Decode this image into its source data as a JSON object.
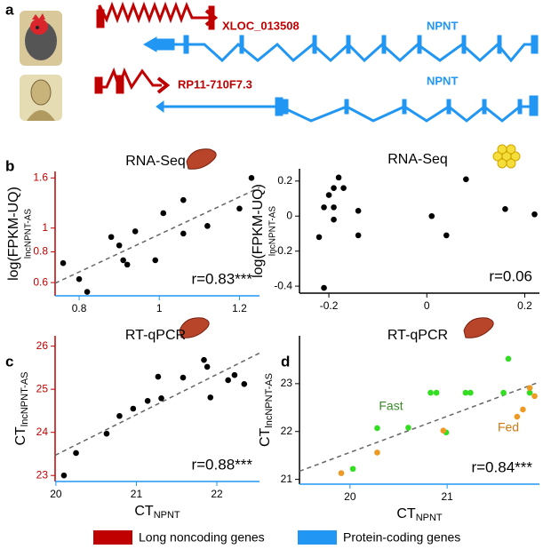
{
  "panel_a": {
    "label": "a",
    "genes": [
      {
        "name": "XLOC_013508",
        "color": "#c00000"
      },
      {
        "name": "NPNT",
        "color": "#2196f3"
      },
      {
        "name": "RP11-710F7.3",
        "color": "#c00000"
      },
      {
        "name": "NPNT",
        "color": "#2196f3"
      }
    ]
  },
  "chart_data": [
    {
      "type": "scatter",
      "label": "b",
      "title": "RNA-Seq",
      "ylabel": "log(FPKM-UQ)",
      "ylabel_sub": "lncNPNT-AS",
      "annotation": "r=0.83***",
      "ylog": true,
      "trendline": true,
      "x_axis_color": "#2196f3",
      "y_axis_color": "#c00000",
      "xlim": [
        0.74,
        1.25
      ],
      "xticks": [
        0.8,
        1,
        1.2
      ],
      "ylim": [
        0.53,
        1.7
      ],
      "yticks": [
        0.6,
        0.8,
        1,
        1.6
      ],
      "series": [
        {
          "color": "#000000",
          "x": [
            0.76,
            0.8,
            0.82,
            0.88,
            0.9,
            0.91,
            0.92,
            0.94,
            0.99,
            1.01,
            1.06,
            1.06,
            1.12,
            1.2,
            1.23
          ],
          "values": [
            0.72,
            0.62,
            0.55,
            0.92,
            0.85,
            0.74,
            0.71,
            0.97,
            0.74,
            1.15,
            0.95,
            1.3,
            1.02,
            1.2,
            1.6
          ]
        }
      ]
    },
    {
      "type": "scatter",
      "title": "RNA-Seq",
      "ylabel": "log(FPKM-UQ)",
      "ylabel_sub": "lncNPNT-AS",
      "annotation": "r=0.06",
      "trendline": false,
      "x_axis_color": "#000000",
      "y_axis_color": "#000000",
      "xlim": [
        -0.26,
        0.23
      ],
      "xticks": [
        -0.2,
        0,
        0.2
      ],
      "ylim": [
        -0.44,
        0.27
      ],
      "yticks": [
        0.2,
        0,
        -0.2,
        -0.4
      ],
      "series": [
        {
          "color": "#000000",
          "x": [
            -0.18,
            -0.2,
            -0.19,
            -0.17,
            -0.21,
            -0.19,
            -0.19,
            -0.14,
            -0.22,
            -0.14,
            0.01,
            0.04,
            0.08,
            0.16,
            0.22,
            -0.21
          ],
          "values": [
            0.22,
            0.12,
            0.16,
            0.16,
            0.05,
            0.05,
            -0.02,
            0.03,
            -0.12,
            -0.11,
            0.0,
            -0.11,
            0.21,
            0.04,
            0.01,
            -0.41
          ]
        }
      ]
    },
    {
      "type": "scatter",
      "label": "c",
      "title": "RT-qPCR",
      "xlabel": "CT",
      "xlabel_sub": "NPNT",
      "ylabel": "CT",
      "ylabel_sub": "lncNPNT-AS",
      "annotation": "r=0.88***",
      "trendline": true,
      "x_axis_color": "#2196f3",
      "y_axis_color": "#c00000",
      "xlim": [
        19.99,
        22.53
      ],
      "xticks": [
        20,
        21,
        22
      ],
      "ylim": [
        22.86,
        26.24
      ],
      "yticks": [
        23,
        24,
        25,
        26
      ],
      "series": [
        {
          "color": "#000000",
          "x": [
            20.1,
            20.25,
            20.63,
            20.79,
            20.96,
            21.14,
            21.27,
            21.31,
            21.58,
            21.84,
            21.88,
            21.92,
            22.14,
            22.22,
            22.34
          ],
          "values": [
            23.0,
            23.52,
            23.97,
            24.38,
            24.55,
            24.73,
            25.29,
            24.79,
            25.27,
            25.68,
            25.52,
            24.81,
            25.21,
            25.33,
            25.12
          ]
        }
      ]
    },
    {
      "type": "scatter",
      "label": "d",
      "title": "RT-qPCR",
      "xlabel": "CT",
      "xlabel_sub": "NPNT",
      "ylabel": "CT",
      "ylabel_sub": "lncNPNT-AS",
      "annotation": "r=0.84***",
      "trendline": true,
      "x_axis_color": "#2196f3",
      "y_axis_color": "#000000",
      "xlim": [
        19.48,
        21.95
      ],
      "xticks": [
        20,
        21
      ],
      "ylim": [
        20.9,
        24.0
      ],
      "yticks": [
        21,
        22,
        23
      ],
      "series": [
        {
          "name": "Fast",
          "color": "#33dd22",
          "x": [
            20.03,
            20.28,
            20.6,
            20.83,
            20.89,
            21.19,
            20.99,
            21.24,
            21.58,
            21.63,
            21.85
          ],
          "values": [
            21.22,
            22.07,
            22.08,
            22.81,
            22.81,
            22.81,
            21.98,
            22.81,
            22.81,
            23.52,
            22.81
          ]
        },
        {
          "name": "Fed",
          "color": "#ee9922",
          "x": [
            19.91,
            20.28,
            20.96,
            21.78,
            21.72,
            21.85,
            21.9
          ],
          "values": [
            21.13,
            21.56,
            22.02,
            22.46,
            22.31,
            22.91,
            22.74
          ]
        }
      ]
    }
  ],
  "legend": [
    {
      "label": "Long noncoding genes",
      "color": "#c00000"
    },
    {
      "label": "Protein-coding genes",
      "color": "#2196f3"
    }
  ]
}
